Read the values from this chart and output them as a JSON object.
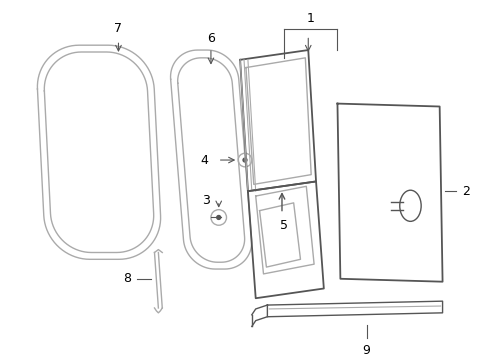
{
  "bg_color": "#ffffff",
  "line_color": "#aaaaaa",
  "dark_line": "#555555",
  "label_color": "#000000",
  "lw": 1.0
}
